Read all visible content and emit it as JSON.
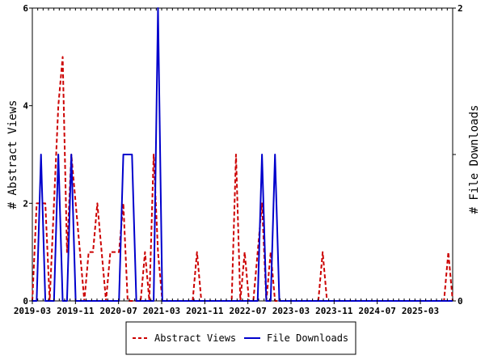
{
  "chart_data": {
    "type": "line",
    "ylabel_left": "# Abstract Views",
    "ylabel_right": "# File Downloads",
    "ylim_left": [
      0,
      6
    ],
    "ylim_right": [
      0,
      2
    ],
    "yticks_left": [
      "0",
      "2",
      "4",
      "6"
    ],
    "yticks_right": [
      "0",
      "1",
      "2"
    ],
    "xtick_labels": [
      "2019-03",
      "2019-11",
      "2020-07",
      "2021-03",
      "2021-11",
      "2022-07",
      "2023-03",
      "2023-11",
      "2024-07",
      "2025-03"
    ],
    "x_start": "2019-03",
    "x_end": "2025-09",
    "grid": false,
    "legend_position": "bottom-center",
    "series": [
      {
        "name": "Abstract Views",
        "color": "#cc0000",
        "style": "dashed",
        "axis": "left",
        "values": [
          0,
          2,
          2,
          2,
          0,
          2,
          4,
          5,
          1,
          3,
          2,
          1,
          0,
          1,
          1,
          2,
          1,
          0,
          1,
          1,
          1,
          2,
          0,
          0,
          0,
          0,
          1,
          0,
          3,
          1,
          0,
          0,
          0,
          0,
          0,
          0,
          0,
          0,
          1,
          0,
          0,
          0,
          0,
          0,
          0,
          0,
          0,
          3,
          0,
          1,
          0,
          0,
          1,
          2,
          0,
          1,
          0,
          0,
          0,
          0,
          0,
          0,
          0,
          0,
          0,
          0,
          0,
          1,
          0,
          0,
          0,
          0,
          0,
          0,
          0,
          0,
          0,
          0,
          0,
          0,
          0,
          0,
          0,
          0,
          0,
          0,
          0,
          0,
          0,
          0,
          0,
          0,
          0,
          0,
          0,
          0,
          1,
          0
        ]
      },
      {
        "name": "File Downloads",
        "color": "#0000cc",
        "style": "solid",
        "axis": "right",
        "values": [
          0,
          0,
          1,
          0,
          0,
          0,
          1,
          0,
          0,
          1,
          0,
          0,
          0,
          0,
          0,
          0,
          0,
          0,
          0,
          0,
          0,
          1,
          1,
          1,
          0,
          0,
          0,
          0,
          0,
          2,
          0,
          0,
          0,
          0,
          0,
          0,
          0,
          0,
          0,
          0,
          0,
          0,
          0,
          0,
          0,
          0,
          0,
          0,
          0,
          0,
          0,
          0,
          0,
          1,
          0,
          0,
          1,
          0,
          0,
          0,
          0,
          0,
          0,
          0,
          0,
          0,
          0,
          0,
          0,
          0,
          0,
          0,
          0,
          0,
          0,
          0,
          0,
          0,
          0,
          0,
          0,
          0,
          0,
          0,
          0,
          0,
          0,
          0,
          0,
          0,
          0,
          0,
          0,
          0,
          0,
          0,
          0,
          0
        ]
      }
    ]
  }
}
